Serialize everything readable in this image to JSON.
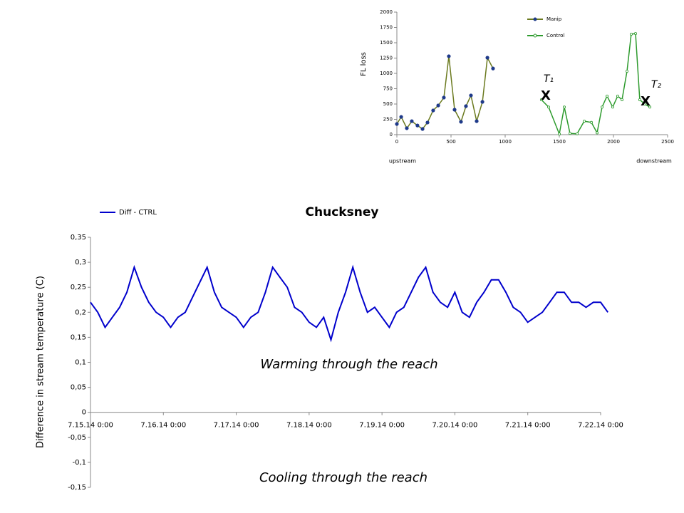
{
  "chart_data": [
    {
      "type": "line",
      "ylabel": "FL loss",
      "xlim": [
        0,
        2500
      ],
      "xticks": [
        0,
        500,
        1000,
        1500,
        2000,
        2500
      ],
      "ylim": [
        0,
        2000
      ],
      "yticks": [
        0,
        250,
        500,
        750,
        1000,
        1250,
        1500,
        1750,
        2000
      ],
      "legend": "top-right",
      "series": [
        {
          "name": "Manip",
          "color": "#1f3a8a",
          "line_color": "#6b7a1f",
          "marker": "dot",
          "x": [
            0,
            40,
            92,
            138,
            190,
            237,
            283,
            335,
            382,
            434,
            480,
            533,
            592,
            638,
            684,
            737,
            790,
            836,
            888
          ],
          "values": [
            174,
            290,
            105,
            220,
            150,
            93,
            198,
            395,
            477,
            605,
            1280,
            407,
            210,
            465,
            640,
            220,
            535,
            1256,
            1080
          ]
        },
        {
          "name": "Control",
          "color": "#2e9b2e",
          "line_color": "#2e9b2e",
          "marker": "open",
          "x": [
            1335,
            1401,
            1500,
            1546,
            1599,
            1664,
            1730,
            1796,
            1849,
            1895,
            1941,
            1993,
            2039,
            2079,
            2125,
            2164,
            2204,
            2243,
            2289,
            2336
          ],
          "values": [
            570,
            450,
            10,
            450,
            20,
            15,
            220,
            200,
            30,
            450,
            630,
            450,
            630,
            570,
            1035,
            1640,
            1650,
            570,
            500,
            450
          ]
        }
      ],
      "annotations": [
        {
          "text": "upstream"
        },
        {
          "text": "downstream"
        },
        {
          "text": "T₁"
        },
        {
          "text": "X"
        },
        {
          "text": "T₂"
        },
        {
          "text": "X"
        }
      ]
    },
    {
      "type": "line",
      "title": "Chucksney",
      "ylabel": "Difference in stream temperature (C)",
      "xlim": [
        0,
        7
      ],
      "xticks": [
        {
          "value": 0,
          "label": "7.15.14 0:00"
        },
        {
          "value": 1,
          "label": "7.16.14 0:00"
        },
        {
          "value": 2,
          "label": "7.17.14 0:00"
        },
        {
          "value": 3,
          "label": "7.18.14 0:00"
        },
        {
          "value": 4,
          "label": "7.19.14 0:00"
        },
        {
          "value": 5,
          "label": "7.20.14 0:00"
        },
        {
          "value": 6,
          "label": "7.21.14 0:00"
        },
        {
          "value": 7,
          "label": "7.22.14 0:00"
        }
      ],
      "ylim": [
        -0.15,
        0.35
      ],
      "yticks": [
        {
          "value": -0.15,
          "label": "-0,15"
        },
        {
          "value": -0.1,
          "label": "-0,1"
        },
        {
          "value": -0.05,
          "label": "-0,05"
        },
        {
          "value": 0,
          "label": "0"
        },
        {
          "value": 0.05,
          "label": "0,05"
        },
        {
          "value": 0.1,
          "label": "0,1"
        },
        {
          "value": 0.15,
          "label": "0,15"
        },
        {
          "value": 0.2,
          "label": "0,2"
        },
        {
          "value": 0.25,
          "label": "0,25"
        },
        {
          "value": 0.3,
          "label": "0,3"
        },
        {
          "value": 0.35,
          "label": "0,35"
        }
      ],
      "legend": "top-left",
      "series": [
        {
          "name": "Diff - CTRL",
          "color": "#0000cc",
          "line_color": "#0000cc",
          "marker": "none",
          "x": [
            0,
            0.1,
            0.2,
            0.3,
            0.4,
            0.5,
            0.6,
            0.7,
            0.8,
            0.9,
            1,
            1.1,
            1.2,
            1.3,
            1.4,
            1.5,
            1.6,
            1.7,
            1.8,
            1.9,
            2,
            2.1,
            2.2,
            2.3,
            2.4,
            2.5,
            2.6,
            2.7,
            2.8,
            2.9,
            3,
            3.1,
            3.2,
            3.3,
            3.4,
            3.5,
            3.6,
            3.7,
            3.8,
            3.9,
            4,
            4.1,
            4.2,
            4.3,
            4.4,
            4.5,
            4.6,
            4.7,
            4.8,
            4.9,
            5,
            5.1,
            5.2,
            5.3,
            5.4,
            5.5,
            5.6,
            5.7,
            5.8,
            5.9,
            6,
            6.1,
            6.2,
            6.3,
            6.4,
            6.5,
            6.6,
            6.7,
            6.8,
            6.9,
            7,
            7.1
          ],
          "values": [
            0.22,
            0.2,
            0.17,
            0.19,
            0.21,
            0.24,
            0.29,
            0.25,
            0.22,
            0.2,
            0.19,
            0.17,
            0.19,
            0.2,
            0.23,
            0.26,
            0.29,
            0.24,
            0.21,
            0.2,
            0.19,
            0.17,
            0.19,
            0.2,
            0.24,
            0.29,
            0.27,
            0.25,
            0.21,
            0.2,
            0.18,
            0.17,
            0.19,
            0.145,
            0.2,
            0.24,
            0.29,
            0.24,
            0.2,
            0.21,
            0.19,
            0.17,
            0.2,
            0.21,
            0.24,
            0.27,
            0.29,
            0.24,
            0.22,
            0.21,
            0.24,
            0.2,
            0.19,
            0.22,
            0.24,
            0.265,
            0.265,
            0.24,
            0.21,
            0.2,
            0.18,
            0.19,
            0.2,
            0.22,
            0.24,
            0.24,
            0.22,
            0.22,
            0.21,
            0.22,
            0.22,
            0.2
          ]
        }
      ],
      "annotations": [
        {
          "text": "Warming through the reach"
        },
        {
          "text": "Cooling through the reach"
        }
      ]
    }
  ]
}
